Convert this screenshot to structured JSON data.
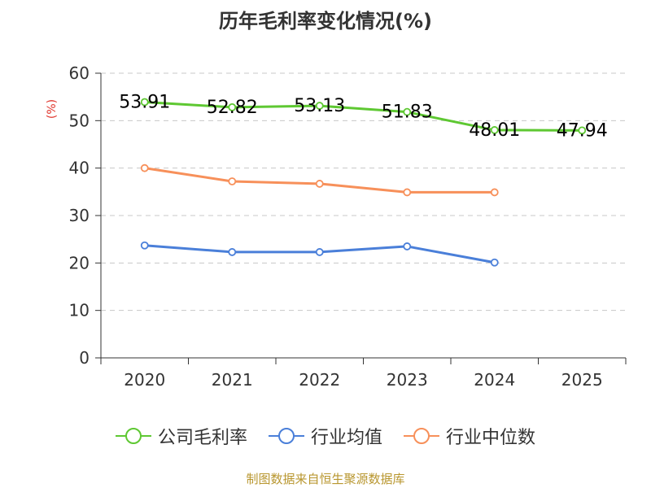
{
  "chart_data": {
    "type": "line",
    "title": "历年毛利率变化情况(%)",
    "ylabel": "(%)",
    "xlabel": "",
    "categories": [
      "2020",
      "2021",
      "2022",
      "2023",
      "2024",
      "2025"
    ],
    "yticks": [
      0,
      10,
      20,
      30,
      40,
      50,
      60
    ],
    "ylim": [
      0,
      60
    ],
    "grid": true,
    "legend_position": "bottom",
    "series": [
      {
        "name": "公司毛利率",
        "color": "#5ec832",
        "values": [
          53.91,
          52.82,
          53.13,
          51.83,
          48.01,
          47.94
        ],
        "labels": [
          "53.91",
          "52.82",
          "53.13",
          "51.83",
          "48.01",
          "47.94"
        ]
      },
      {
        "name": "行业均值",
        "color": "#4a7fd9",
        "values": [
          23.7,
          22.3,
          22.3,
          23.5,
          20.1,
          null
        ]
      },
      {
        "name": "行业中位数",
        "color": "#f7905a",
        "values": [
          40.0,
          37.2,
          36.7,
          34.9,
          34.9,
          null
        ]
      }
    ],
    "source": "制图数据来自恒生聚源数据库"
  }
}
